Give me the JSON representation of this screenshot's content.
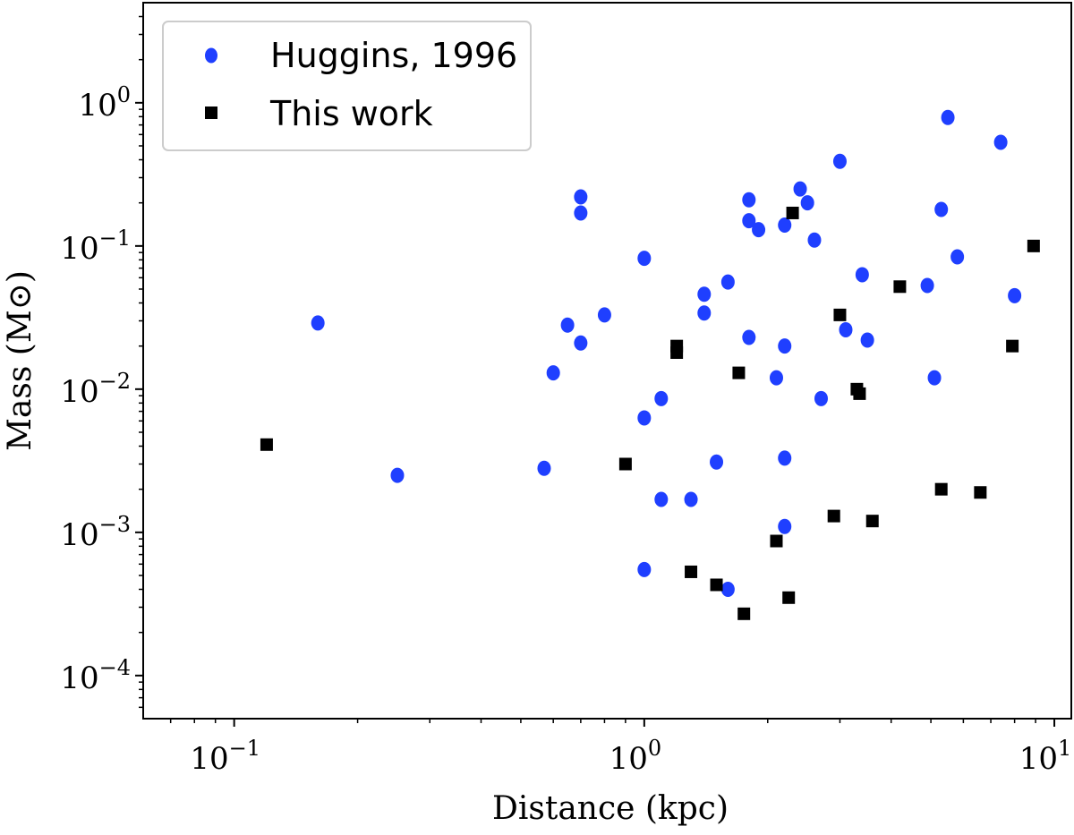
{
  "chart_data": {
    "type": "scatter",
    "xlabel": "Distance (kpc)",
    "ylabel": "Mass (M⊙)",
    "x_scale": "log",
    "y_scale": "log",
    "xlim": [
      0.06,
      11
    ],
    "ylim": [
      5e-05,
      5
    ],
    "x_ticks": [
      {
        "value": 0.1,
        "base": "10",
        "exp": "−1"
      },
      {
        "value": 1,
        "base": "10",
        "exp": "0"
      },
      {
        "value": 10,
        "base": "10",
        "exp": "1"
      }
    ],
    "y_ticks": [
      {
        "value": 0.0001,
        "base": "10",
        "exp": "−4"
      },
      {
        "value": 0.001,
        "base": "10",
        "exp": "−3"
      },
      {
        "value": 0.01,
        "base": "10",
        "exp": "−2"
      },
      {
        "value": 0.1,
        "base": "10",
        "exp": "−1"
      },
      {
        "value": 1,
        "base": "10",
        "exp": "0"
      }
    ],
    "grid": false,
    "legend_position": "top-left",
    "series": [
      {
        "name": "Huggins, 1996",
        "marker": "circle",
        "color": "#1f3fff",
        "points": [
          [
            0.16,
            0.029
          ],
          [
            0.25,
            0.0025
          ],
          [
            0.57,
            0.0028
          ],
          [
            0.6,
            0.013
          ],
          [
            0.65,
            0.028
          ],
          [
            0.7,
            0.22
          ],
          [
            0.7,
            0.17
          ],
          [
            0.7,
            0.021
          ],
          [
            0.8,
            0.033
          ],
          [
            1.0,
            0.082
          ],
          [
            1.0,
            0.0063
          ],
          [
            1.0,
            0.00055
          ],
          [
            1.1,
            0.0086
          ],
          [
            1.1,
            0.0017
          ],
          [
            1.3,
            0.0017
          ],
          [
            1.4,
            0.046
          ],
          [
            1.4,
            0.034
          ],
          [
            1.5,
            0.0031
          ],
          [
            1.6,
            0.056
          ],
          [
            1.6,
            0.0004
          ],
          [
            1.8,
            0.21
          ],
          [
            1.8,
            0.15
          ],
          [
            1.8,
            0.023
          ],
          [
            1.9,
            0.13
          ],
          [
            2.1,
            0.012
          ],
          [
            2.2,
            0.14
          ],
          [
            2.2,
            0.02
          ],
          [
            2.2,
            0.0033
          ],
          [
            2.2,
            0.0011
          ],
          [
            2.4,
            0.25
          ],
          [
            2.5,
            0.2
          ],
          [
            2.6,
            0.11
          ],
          [
            2.7,
            0.0086
          ],
          [
            3.0,
            0.39
          ],
          [
            3.1,
            0.026
          ],
          [
            3.4,
            0.063
          ],
          [
            3.5,
            0.022
          ],
          [
            4.9,
            0.053
          ],
          [
            5.1,
            0.012
          ],
          [
            5.3,
            0.18
          ],
          [
            5.5,
            0.79
          ],
          [
            5.8,
            0.084
          ],
          [
            7.4,
            0.53
          ],
          [
            8.0,
            0.045
          ]
        ]
      },
      {
        "name": "This work",
        "marker": "square",
        "color": "#000000",
        "points": [
          [
            0.12,
            0.0041
          ],
          [
            0.9,
            0.003
          ],
          [
            1.2,
            0.02
          ],
          [
            1.2,
            0.018
          ],
          [
            1.3,
            0.00053
          ],
          [
            1.5,
            0.00043
          ],
          [
            1.7,
            0.013
          ],
          [
            1.75,
            0.00027
          ],
          [
            2.1,
            0.00087
          ],
          [
            2.25,
            0.00035
          ],
          [
            2.3,
            0.17
          ],
          [
            2.9,
            0.0013
          ],
          [
            3.0,
            0.033
          ],
          [
            3.3,
            0.01
          ],
          [
            3.35,
            0.0093
          ],
          [
            3.6,
            0.0012
          ],
          [
            4.2,
            0.052
          ],
          [
            5.3,
            0.002
          ],
          [
            6.6,
            0.0019
          ],
          [
            7.9,
            0.02
          ],
          [
            8.9,
            0.1
          ]
        ]
      }
    ]
  }
}
